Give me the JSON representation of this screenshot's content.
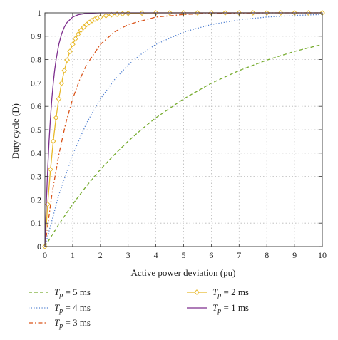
{
  "chart_data": {
    "type": "line",
    "xlabel": "Active power deviation (pu)",
    "ylabel": "Duty cycle (D)",
    "xlim": [
      0,
      10
    ],
    "ylim": [
      0,
      1
    ],
    "x_ticks": [
      "0",
      "1",
      "2",
      "3",
      "4",
      "5",
      "6",
      "7",
      "8",
      "9",
      "10"
    ],
    "y_ticks": [
      "0",
      "0.1",
      "0.2",
      "0.3",
      "0.4",
      "0.5",
      "0.6",
      "0.7",
      "0.8",
      "0.9",
      "1"
    ],
    "grid": true,
    "legend_position": "bottom",
    "series": [
      {
        "name_symbol": "T",
        "name_sub": "p",
        "name_value": " = 5 ms",
        "color": "#77ac30",
        "dash": "dashed",
        "marker": "none",
        "x": [
          0,
          0.5,
          1,
          1.5,
          2,
          2.5,
          3,
          3.5,
          4,
          5,
          6,
          7,
          8,
          9,
          10
        ],
        "values": [
          0,
          0.095,
          0.181,
          0.259,
          0.33,
          0.393,
          0.451,
          0.503,
          0.551,
          0.632,
          0.699,
          0.753,
          0.798,
          0.835,
          0.865
        ]
      },
      {
        "name_symbol": "T",
        "name_sub": "p",
        "name_value": " = 4 ms",
        "color": "#4f7fd0",
        "dash": "dotted",
        "marker": "none",
        "x": [
          0,
          0.5,
          1,
          1.5,
          2,
          2.5,
          3,
          3.5,
          4,
          5,
          6,
          7,
          8,
          9,
          10
        ],
        "values": [
          0,
          0.221,
          0.393,
          0.528,
          0.632,
          0.713,
          0.777,
          0.826,
          0.865,
          0.918,
          0.95,
          0.97,
          0.982,
          0.989,
          0.993
        ]
      },
      {
        "name_symbol": "T",
        "name_sub": "p",
        "name_value": " = 3 ms",
        "color": "#d95319",
        "dash": "dashdot",
        "marker": "none",
        "x": [
          0,
          0.25,
          0.5,
          0.75,
          1,
          1.25,
          1.5,
          2,
          2.5,
          3,
          4,
          5,
          6,
          7,
          8,
          9,
          10
        ],
        "values": [
          0,
          0.221,
          0.393,
          0.528,
          0.632,
          0.713,
          0.777,
          0.865,
          0.918,
          0.95,
          0.982,
          0.993,
          0.998,
          0.999,
          1,
          1,
          1
        ]
      },
      {
        "name_symbol": "T",
        "name_sub": "p",
        "name_value": " = 2 ms",
        "color": "#e8b92a",
        "dash": "solid",
        "marker": "diamond",
        "x": [
          0,
          0.1,
          0.2,
          0.3,
          0.4,
          0.5,
          0.6,
          0.7,
          0.8,
          0.9,
          1,
          1.1,
          1.2,
          1.3,
          1.4,
          1.5,
          1.6,
          1.7,
          1.8,
          1.9,
          2,
          2.2,
          2.4,
          2.6,
          2.8,
          3,
          3.5,
          4,
          4.5,
          5,
          5.5,
          6,
          6.5,
          7,
          7.5,
          8,
          8.5,
          9,
          9.5,
          10
        ],
        "values": [
          0,
          0.181,
          0.33,
          0.451,
          0.551,
          0.632,
          0.699,
          0.753,
          0.798,
          0.835,
          0.865,
          0.889,
          0.909,
          0.926,
          0.939,
          0.95,
          0.959,
          0.967,
          0.973,
          0.978,
          0.982,
          0.988,
          0.992,
          0.994,
          0.996,
          0.998,
          0.999,
          1,
          1,
          1,
          1,
          1,
          1,
          1,
          1,
          1,
          1,
          1,
          1,
          1
        ]
      },
      {
        "name_symbol": "T",
        "name_sub": "p",
        "name_value": " = 1 ms",
        "color": "#7e2f8e",
        "dash": "solid",
        "marker": "none",
        "x": [
          0,
          0.05,
          0.1,
          0.15,
          0.2,
          0.25,
          0.3,
          0.35,
          0.4,
          0.5,
          0.6,
          0.7,
          0.8,
          1,
          1.2,
          1.5,
          2,
          3,
          10
        ],
        "values": [
          0,
          0.181,
          0.33,
          0.451,
          0.551,
          0.632,
          0.699,
          0.753,
          0.798,
          0.865,
          0.909,
          0.939,
          0.959,
          0.982,
          0.992,
          0.998,
          1,
          1,
          1
        ]
      }
    ]
  }
}
